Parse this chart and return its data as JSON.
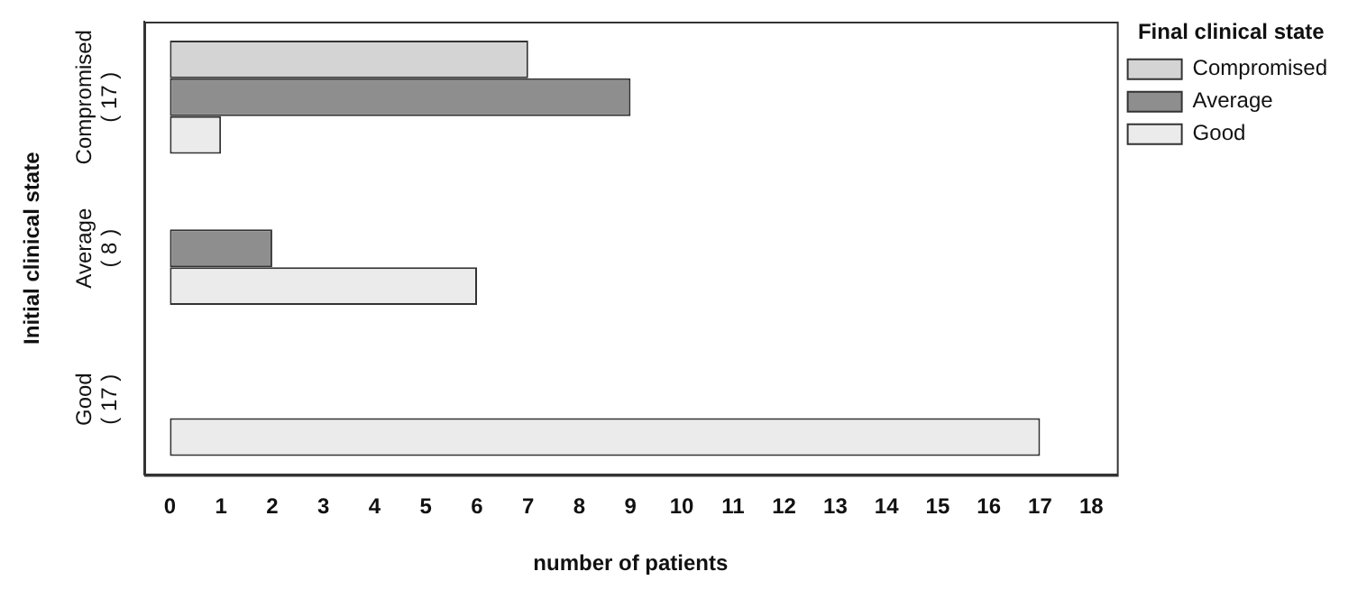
{
  "chart_data": {
    "type": "bar",
    "orientation": "horizontal",
    "xlabel": "number of patients",
    "ylabel": "Initial clinical state",
    "legend_title": "Final clinical state",
    "categories": [
      "Compromised\n( 17 )",
      "Average\n( 8 )",
      "Good\n( 17 )"
    ],
    "series": [
      {
        "name": "Compromised",
        "color": "#d4d4d4",
        "values": [
          7,
          0,
          0
        ]
      },
      {
        "name": "Average",
        "color": "#8e8e8e",
        "values": [
          9,
          2,
          0
        ]
      },
      {
        "name": "Good",
        "color": "#ebebeb",
        "values": [
          1,
          6,
          17
        ]
      }
    ],
    "xlim": [
      -0.5,
      18.5
    ],
    "xticks": [
      0,
      1,
      2,
      3,
      4,
      5,
      6,
      7,
      8,
      9,
      10,
      11,
      12,
      13,
      14,
      15,
      16,
      17,
      18
    ],
    "grid": false,
    "legend": "top right"
  }
}
